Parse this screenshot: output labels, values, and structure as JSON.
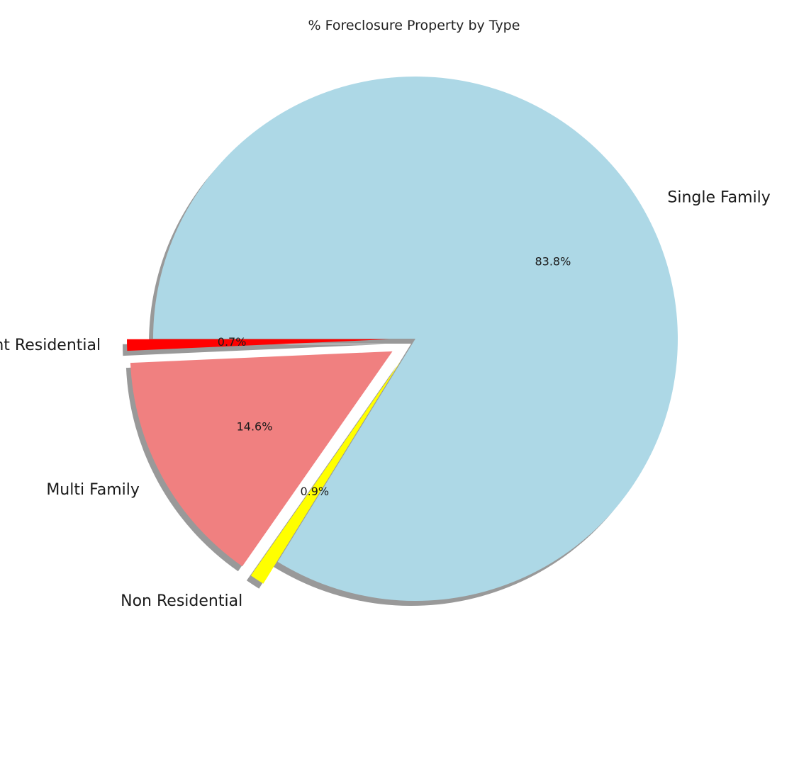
{
  "chart_data": {
    "type": "pie",
    "title": "% Foreclosure Property by Type",
    "start_angle_deg": 180,
    "counterclockwise": true,
    "shadow": true,
    "slices": [
      {
        "label": "Vacant Residential",
        "pct_label": "0.7%",
        "value": 0.7,
        "color": "#ff0000",
        "exploded": true
      },
      {
        "label": "Multi Family",
        "pct_label": "14.6%",
        "value": 14.6,
        "color": "#f08080",
        "exploded": true
      },
      {
        "label": "Non Residential",
        "pct_label": "0.9%",
        "value": 0.9,
        "color": "#ffff00",
        "exploded": true
      },
      {
        "label": "Single Family",
        "pct_label": "83.8%",
        "value": 83.8,
        "color": "#add8e6",
        "exploded": false
      }
    ]
  }
}
